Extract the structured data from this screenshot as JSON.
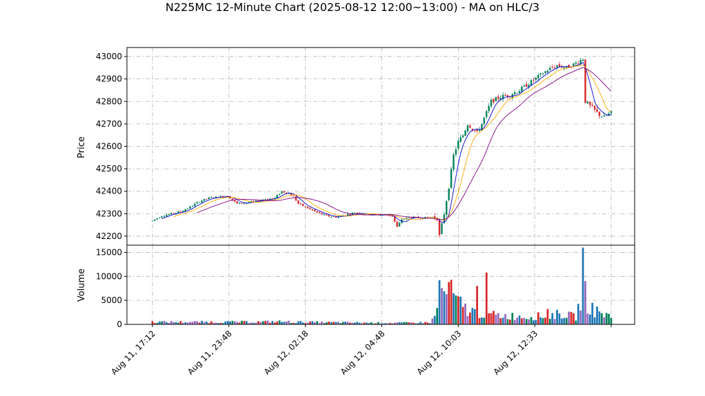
{
  "chart_data": {
    "type": "candlestick",
    "title": "N225MC 12-Minute Chart (2025-08-12 12:00~13:00) - MA on HLC/3",
    "price_panel": {
      "ylabel": "Price",
      "ylim": [
        42160,
        43040
      ],
      "yticks": [
        42200,
        42300,
        42400,
        42500,
        42600,
        42700,
        42800,
        42900,
        43000
      ]
    },
    "volume_panel": {
      "ylabel": "Volume",
      "ylim": [
        0,
        16500
      ],
      "yticks": [
        0,
        5000,
        10000,
        15000
      ],
      "ytick_labels": [
        "0",
        "5000",
        "10000",
        "15000"
      ]
    },
    "x_tick_labels": [
      "Aug 11, 17:12",
      "Aug 11, 23:48",
      "Aug 12, 02:18",
      "Aug 12, 04:48",
      "Aug 12, 10:03",
      "Aug 12, 12:33"
    ],
    "grid": true,
    "candle_colors": {
      "up": "#00805a",
      "down": "#d62728"
    },
    "volume_colors": [
      "#1f77b4",
      "#00805a",
      "#d62728",
      "#9467bd"
    ],
    "ma_colors": {
      "fast": "#0000cc",
      "mid": "#ffa500",
      "slow": "#800080"
    },
    "price_path": [
      [
        0,
        42270
      ],
      [
        4,
        42290
      ],
      [
        8,
        42300
      ],
      [
        12,
        42310
      ],
      [
        16,
        42330
      ],
      [
        20,
        42355
      ],
      [
        24,
        42370
      ],
      [
        28,
        42375
      ],
      [
        32,
        42380
      ],
      [
        34,
        42360
      ],
      [
        36,
        42345
      ],
      [
        40,
        42350
      ],
      [
        44,
        42355
      ],
      [
        48,
        42365
      ],
      [
        52,
        42370
      ],
      [
        55,
        42400
      ],
      [
        58,
        42390
      ],
      [
        60,
        42375
      ],
      [
        62,
        42345
      ],
      [
        66,
        42325
      ],
      [
        70,
        42305
      ],
      [
        74,
        42290
      ],
      [
        78,
        42285
      ],
      [
        82,
        42295
      ],
      [
        86,
        42305
      ],
      [
        90,
        42300
      ],
      [
        94,
        42295
      ],
      [
        98,
        42295
      ],
      [
        102,
        42290
      ],
      [
        104,
        42240
      ],
      [
        106,
        42275
      ],
      [
        110,
        42285
      ],
      [
        114,
        42280
      ],
      [
        118,
        42285
      ],
      [
        121,
        42280
      ],
      [
        122,
        42200
      ],
      [
        124,
        42300
      ],
      [
        126,
        42420
      ],
      [
        128,
        42560
      ],
      [
        130,
        42620
      ],
      [
        132,
        42650
      ],
      [
        134,
        42700
      ],
      [
        136,
        42680
      ],
      [
        138,
        42660
      ],
      [
        140,
        42700
      ],
      [
        142,
        42750
      ],
      [
        144,
        42800
      ],
      [
        148,
        42820
      ],
      [
        152,
        42830
      ],
      [
        156,
        42850
      ],
      [
        160,
        42880
      ],
      [
        164,
        42910
      ],
      [
        168,
        42940
      ],
      [
        172,
        42960
      ],
      [
        176,
        42950
      ],
      [
        180,
        42970
      ],
      [
        183,
        42990
      ],
      [
        184,
        42800
      ],
      [
        186,
        42780
      ],
      [
        188,
        42760
      ],
      [
        190,
        42740
      ],
      [
        192,
        42730
      ],
      [
        195,
        42750
      ]
    ],
    "volume_profile": [
      [
        0,
        500
      ],
      [
        40,
        500
      ],
      [
        55,
        600
      ],
      [
        60,
        500
      ],
      [
        100,
        300
      ],
      [
        118,
        400
      ],
      [
        120,
        1500
      ],
      [
        122,
        5500
      ],
      [
        124,
        7000
      ],
      [
        126,
        6000
      ],
      [
        128,
        5000
      ],
      [
        130,
        4500
      ],
      [
        132,
        3800
      ],
      [
        134,
        3000
      ],
      [
        138,
        2500
      ],
      [
        144,
        2000
      ],
      [
        150,
        1800
      ],
      [
        160,
        1600
      ],
      [
        168,
        1800
      ],
      [
        174,
        2200
      ],
      [
        180,
        1500
      ],
      [
        182,
        5000
      ],
      [
        183,
        12000
      ],
      [
        184,
        6000
      ],
      [
        186,
        3000
      ],
      [
        190,
        2500
      ],
      [
        195,
        1600
      ]
    ],
    "volume_spikes": [
      [
        183,
        16000
      ],
      [
        184,
        9000
      ],
      [
        142,
        10800
      ],
      [
        127,
        9300
      ],
      [
        138,
        8000
      ],
      [
        122,
        9200
      ],
      [
        168,
        3200
      ],
      [
        187,
        4500
      ]
    ],
    "bar_count": 196
  }
}
